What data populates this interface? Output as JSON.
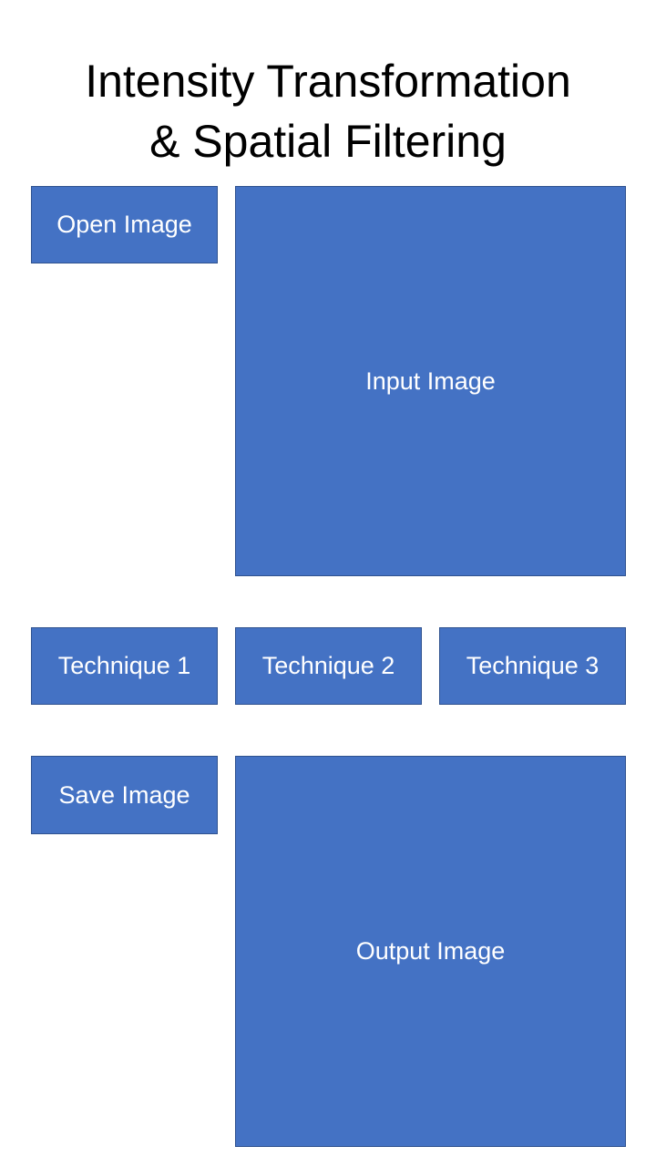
{
  "title": {
    "line1": "Intensity Transformation",
    "line2": "& Spatial Filtering"
  },
  "colors": {
    "box_fill": "#4472c4",
    "box_border": "#2f528f",
    "box_text": "#ffffff",
    "title_text": "#000000"
  },
  "buttons": {
    "open": "Open Image",
    "save": "Save Image",
    "technique1": "Technique 1",
    "technique2": "Technique 2",
    "technique3": "Technique 3"
  },
  "panels": {
    "input": "Input Image",
    "output": "Output Image"
  }
}
